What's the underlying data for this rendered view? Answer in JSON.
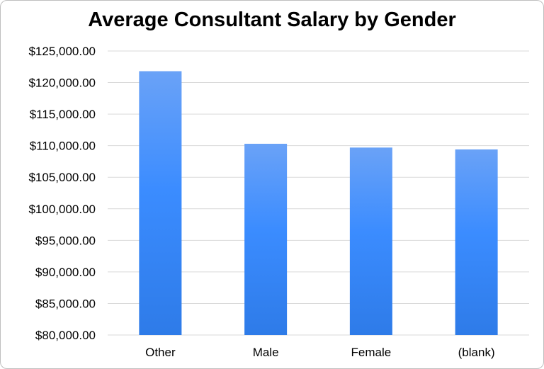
{
  "chart_data": {
    "type": "bar",
    "title": "Average Consultant Salary by Gender",
    "xlabel": "",
    "ylabel": "",
    "categories": [
      "Other",
      "Male",
      "Female",
      "(blank)"
    ],
    "values": [
      121800,
      110300,
      109700,
      109400
    ],
    "ylim": [
      80000,
      125000
    ],
    "yticks": [
      80000,
      85000,
      90000,
      95000,
      100000,
      105000,
      110000,
      115000,
      120000,
      125000
    ],
    "ytick_labels": [
      "$80,000.00",
      "$85,000.00",
      "$90,000.00",
      "$95,000.00",
      "$100,000.00",
      "$105,000.00",
      "$110,000.00",
      "$115,000.00",
      "$120,000.00",
      "$125,000.00"
    ],
    "grid": true,
    "legend": "none",
    "colors": {
      "bar_top": "#6aa2f7",
      "bar_mid": "#3b8cff",
      "bar_bottom": "#2e7be8",
      "grid": "#d9d9d9"
    }
  }
}
